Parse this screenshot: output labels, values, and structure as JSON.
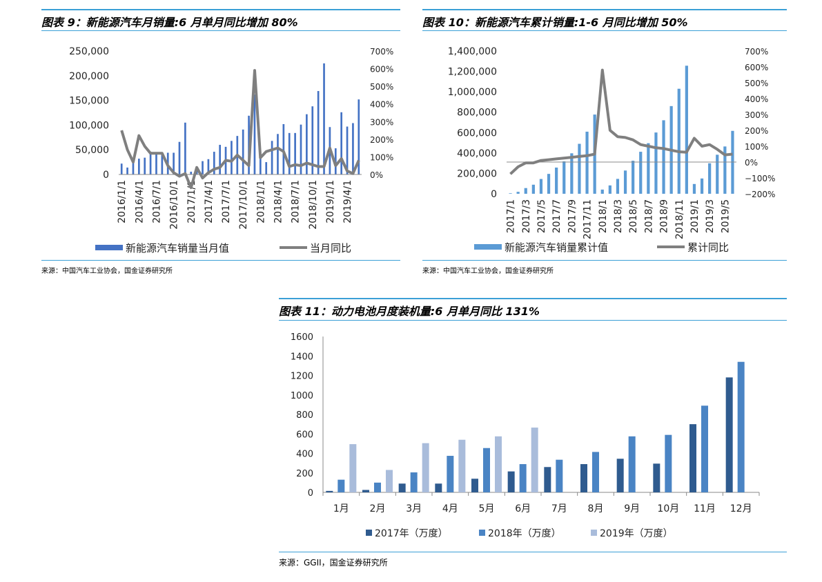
{
  "charts": [
    {
      "title": "图表 9：新能源汽车月销量:6 月单月同比增加 80%",
      "source": "来源：中国汽车工业协会，国金证券研究所",
      "chart_data": {
        "type": "bar",
        "combo": "bar+line",
        "categories": [
          "2016/1",
          "2016/2",
          "2016/3",
          "2016/4",
          "2016/5",
          "2016/6",
          "2016/7",
          "2016/8",
          "2016/9",
          "2016/10",
          "2016/11",
          "2016/12",
          "2017/1",
          "2017/2",
          "2017/3",
          "2017/4",
          "2017/5",
          "2017/6",
          "2017/7",
          "2017/8",
          "2017/9",
          "2017/10",
          "2017/11",
          "2017/12",
          "2018/1",
          "2018/2",
          "2018/3",
          "2018/4",
          "2018/5",
          "2018/6",
          "2018/7",
          "2018/8",
          "2018/9",
          "2018/10",
          "2018/11",
          "2018/12",
          "2019/1",
          "2019/2",
          "2019/3",
          "2019/4",
          "2019/5",
          "2019/6"
        ],
        "tick_labels": [
          "2016/1/1",
          "2016/4/1",
          "2016/7/1",
          "2016/10/1",
          "2017/1/1",
          "2017/4/1",
          "2017/7/1",
          "2017/10/1",
          "2018/1/1",
          "2018/4/1",
          "2018/7/1",
          "2018/10/1",
          "2019/1/1",
          "2019/4/1"
        ],
        "series": [
          {
            "name": "新能源汽车销量当月值",
            "axis": "left",
            "type": "bar",
            "color": "#4472c4",
            "values": [
              22000,
              14000,
              33000,
              32000,
              34000,
              46000,
              43000,
              44000,
              44000,
              44000,
              66000,
              105000,
              5600,
              11000,
              27000,
              31000,
              46000,
              60000,
              56000,
              68000,
              78000,
              91000,
              119000,
              162000,
              40000,
              25000,
              68000,
              82000,
              102000,
              84000,
              84000,
              101000,
              122000,
              138000,
              169000,
              225000,
              96000,
              53000,
              126000,
              97000,
              104000,
              152000
            ]
          },
          {
            "name": "当月同比",
            "axis": "right",
            "type": "line",
            "color": "#7f7f7f",
            "values": [
              2.5,
              1.4,
              0.7,
              2.2,
              1.6,
              1.2,
              1.2,
              1.2,
              0.5,
              0.1,
              -0.1,
              0.05,
              -0.75,
              0.4,
              -0.2,
              0.1,
              0.3,
              0.4,
              0.8,
              0.75,
              1.1,
              0.8,
              0.5,
              5.9,
              0.95,
              1.3,
              1.4,
              1.5,
              1.3,
              0.45,
              0.55,
              0.5,
              0.65,
              0.55,
              0.45,
              0.45,
              1.5,
              0.5,
              0.9,
              0.2,
              0.05,
              0.8
            ]
          }
        ],
        "yleft": {
          "min": 0,
          "max": 250000,
          "ticks": [
            "0",
            "50,000",
            "100,000",
            "150,000",
            "200,000",
            "250,000"
          ]
        },
        "yright": {
          "min": 0,
          "max": 7,
          "ticks": [
            "0%",
            "100%",
            "200%",
            "300%",
            "400%",
            "500%",
            "600%",
            "700%"
          ]
        },
        "legend": [
          "新能源汽车销量当月值",
          "当月同比"
        ]
      }
    },
    {
      "title": "图表 10：新能源汽车累计销量:1-6 月同比增加 50%",
      "source": "来源：中国汽车工业协会，国金证券研究所",
      "chart_data": {
        "type": "bar",
        "combo": "bar+line",
        "categories": [
          "2017/1",
          "2017/2",
          "2017/3",
          "2017/4",
          "2017/5",
          "2017/6",
          "2017/7",
          "2017/8",
          "2017/9",
          "2017/10",
          "2017/11",
          "2017/12",
          "2018/1",
          "2018/2",
          "2018/3",
          "2018/4",
          "2018/5",
          "2018/6",
          "2018/7",
          "2018/8",
          "2018/9",
          "2018/10",
          "2018/11",
          "2018/12",
          "2019/1",
          "2019/2",
          "2019/3",
          "2019/4",
          "2019/5",
          "2019/6"
        ],
        "tick_labels": [
          "2017/1",
          "2017/3",
          "2017/5",
          "2017/7",
          "2017/9",
          "2017/11",
          "2018/1",
          "2018/3",
          "2018/5",
          "2018/7",
          "2018/9",
          "2018/11",
          "2019/1",
          "2019/3",
          "2019/5"
        ],
        "series": [
          {
            "name": "新能源汽车销量累计值",
            "axis": "left",
            "type": "bar",
            "color": "#5b9bd5",
            "values": [
              5000,
              19000,
              56000,
              89000,
              145000,
              195000,
              257000,
              318000,
              397000,
              490000,
              609000,
              777000,
              41000,
              82000,
              146000,
              228000,
              324000,
              412000,
              496000,
              601000,
              721000,
              860000,
              1030000,
              1256000,
              96000,
              150000,
              299000,
              383000,
              464000,
              617000
            ]
          },
          {
            "name": "累计同比",
            "axis": "right",
            "type": "line",
            "color": "#7f7f7f",
            "values": [
              -0.75,
              -0.3,
              -0.05,
              -0.05,
              0.1,
              0.15,
              0.2,
              0.25,
              0.3,
              0.35,
              0.4,
              0.5,
              5.8,
              2.0,
              1.6,
              1.55,
              1.4,
              1.1,
              1.0,
              0.9,
              0.85,
              0.75,
              0.65,
              0.62,
              1.5,
              1.0,
              1.1,
              0.8,
              0.45,
              0.5
            ]
          }
        ],
        "yleft": {
          "min": 0,
          "max": 1400000,
          "ticks": [
            "0",
            "200,000",
            "400,000",
            "600,000",
            "800,000",
            "1,000,000",
            "1,200,000",
            "1,400,000"
          ]
        },
        "yright": {
          "min": -2,
          "max": 7,
          "ticks": [
            "−200%",
            "−100%",
            "0%",
            "100%",
            "200%",
            "300%",
            "400%",
            "500%",
            "600%",
            "700%"
          ]
        },
        "legend": [
          "新能源汽车销量累计值",
          "累计同比"
        ]
      }
    },
    {
      "title": "图表 11：动力电池月度装机量:6 月单月同比 131%",
      "source": "来源：GGII，国金证券研究所",
      "chart_data": {
        "type": "bar",
        "categories": [
          "1月",
          "2月",
          "3月",
          "4月",
          "5月",
          "6月",
          "7月",
          "8月",
          "9月",
          "10月",
          "11月",
          "12月"
        ],
        "series": [
          {
            "name": "2017年（万度）",
            "color": "#2f5b8f",
            "values": [
              15,
              25,
              90,
              90,
              140,
              215,
              260,
              290,
              345,
              295,
              700,
              1180
            ]
          },
          {
            "name": "2018年（万度）",
            "color": "#4a84c4",
            "values": [
              130,
              100,
              205,
              375,
              455,
              290,
              335,
              415,
              575,
              590,
              890,
              1340
            ]
          },
          {
            "name": "2019年（万度）",
            "color": "#a9bcdb",
            "values": [
              495,
              230,
              505,
              540,
              575,
              665,
              null,
              null,
              null,
              null,
              null,
              null
            ]
          }
        ],
        "ylim": [
          0,
          1600
        ],
        "yticks": [
          "0",
          "200",
          "400",
          "600",
          "800",
          "1000",
          "1200",
          "1400",
          "1600"
        ]
      }
    }
  ]
}
